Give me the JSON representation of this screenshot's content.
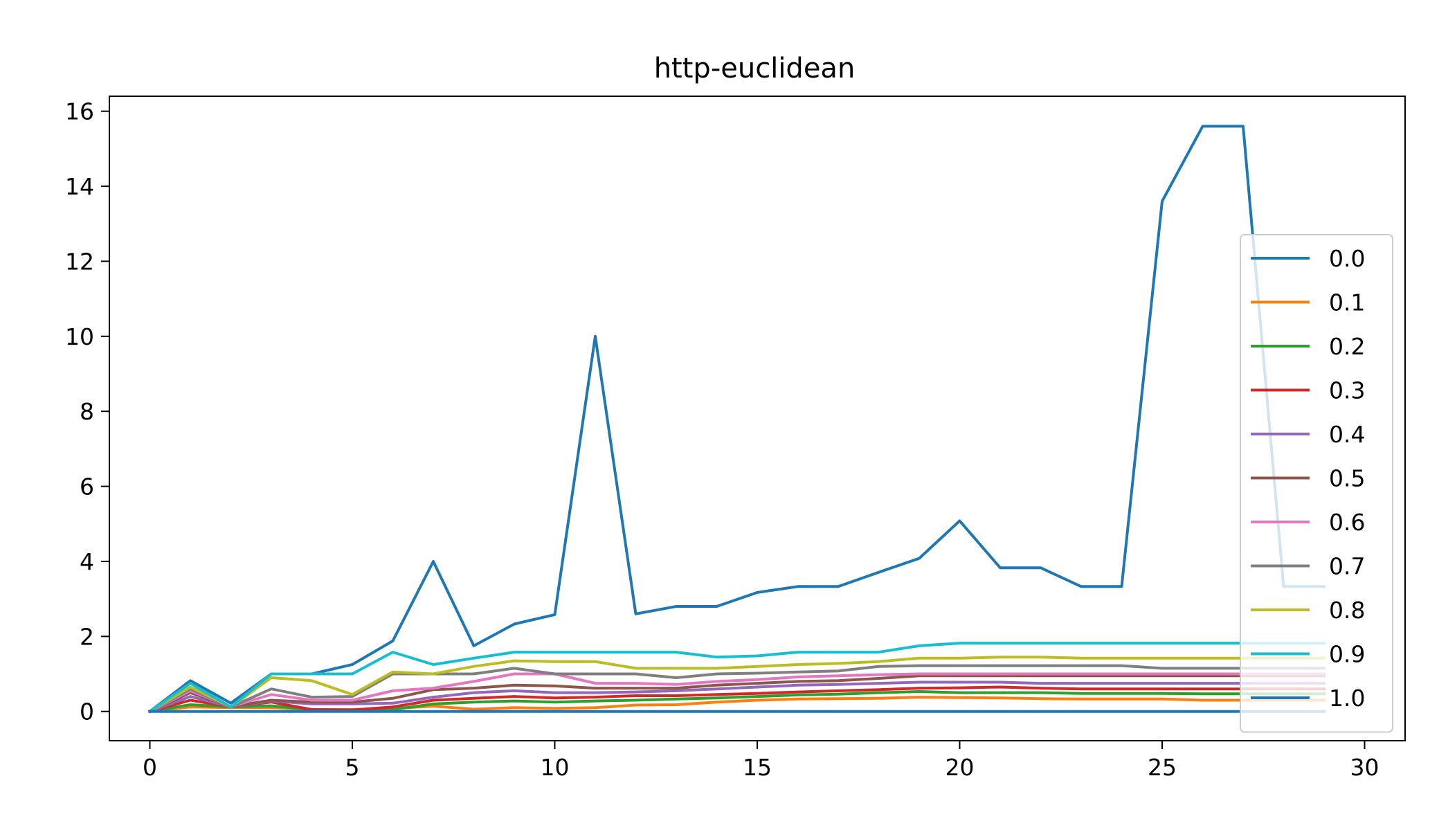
{
  "chart_data": {
    "type": "line",
    "title": "http-euclidean",
    "xlabel": "",
    "ylabel": "",
    "xlim": [
      -1,
      31
    ],
    "ylim": [
      -0.78,
      16.4
    ],
    "xticks": [
      0,
      5,
      10,
      15,
      20,
      25,
      30
    ],
    "yticks": [
      0,
      2,
      4,
      6,
      8,
      10,
      12,
      14,
      16
    ],
    "grid": false,
    "legend_position": "right",
    "x": [
      0,
      1,
      2,
      3,
      4,
      5,
      6,
      7,
      8,
      9,
      10,
      11,
      12,
      13,
      14,
      15,
      16,
      17,
      18,
      19,
      20,
      21,
      22,
      23,
      24,
      25,
      26,
      27,
      28,
      29
    ],
    "series": [
      {
        "name": "0.0",
        "color": "#1f77b4",
        "values": [
          0,
          0.82,
          0.22,
          1.0,
          1.0,
          1.25,
          1.88,
          4.0,
          1.75,
          2.33,
          2.58,
          10.0,
          2.6,
          2.8,
          2.8,
          3.17,
          3.33,
          3.33,
          3.71,
          4.08,
          5.08,
          3.83,
          3.83,
          3.33,
          3.33,
          13.6,
          15.6,
          15.6,
          3.33,
          3.33
        ]
      },
      {
        "name": "0.1",
        "color": "#ff7f0e",
        "values": [
          0,
          0.12,
          0.1,
          0.1,
          0.05,
          0.05,
          0.08,
          0.14,
          0.06,
          0.1,
          0.08,
          0.1,
          0.17,
          0.18,
          0.25,
          0.3,
          0.33,
          0.34,
          0.35,
          0.38,
          0.37,
          0.36,
          0.34,
          0.33,
          0.33,
          0.33,
          0.3,
          0.3,
          0.3,
          0.3
        ]
      },
      {
        "name": "0.2",
        "color": "#2ca02c",
        "values": [
          0,
          0.18,
          0.12,
          0.15,
          0.05,
          0.04,
          0.05,
          0.2,
          0.25,
          0.28,
          0.25,
          0.28,
          0.3,
          0.33,
          0.36,
          0.4,
          0.44,
          0.46,
          0.5,
          0.53,
          0.5,
          0.5,
          0.5,
          0.48,
          0.48,
          0.48,
          0.47,
          0.47,
          0.47,
          0.47
        ]
      },
      {
        "name": "0.3",
        "color": "#d62728",
        "values": [
          0,
          0.3,
          0.12,
          0.25,
          0.05,
          0.04,
          0.12,
          0.3,
          0.35,
          0.4,
          0.36,
          0.38,
          0.42,
          0.42,
          0.45,
          0.48,
          0.52,
          0.55,
          0.58,
          0.62,
          0.63,
          0.65,
          0.62,
          0.6,
          0.6,
          0.6,
          0.6,
          0.6,
          0.6,
          0.6
        ]
      },
      {
        "name": "0.4",
        "color": "#9467bd",
        "values": [
          0,
          0.4,
          0.12,
          0.28,
          0.2,
          0.2,
          0.22,
          0.38,
          0.5,
          0.55,
          0.5,
          0.5,
          0.52,
          0.55,
          0.6,
          0.65,
          0.7,
          0.72,
          0.75,
          0.78,
          0.78,
          0.78,
          0.75,
          0.75,
          0.75,
          0.75,
          0.75,
          0.75,
          0.75,
          0.75
        ]
      },
      {
        "name": "0.5",
        "color": "#8c564b",
        "values": [
          0,
          0.5,
          0.13,
          0.3,
          0.25,
          0.25,
          0.35,
          0.58,
          0.62,
          0.7,
          0.68,
          0.62,
          0.62,
          0.62,
          0.7,
          0.75,
          0.8,
          0.82,
          0.88,
          0.95,
          0.95,
          0.95,
          0.95,
          0.95,
          0.95,
          0.95,
          0.95,
          0.95,
          0.95,
          0.95
        ]
      },
      {
        "name": "0.6",
        "color": "#e377c2",
        "values": [
          0,
          0.55,
          0.13,
          0.45,
          0.3,
          0.3,
          0.55,
          0.62,
          0.8,
          1.0,
          1.0,
          0.75,
          0.75,
          0.72,
          0.8,
          0.85,
          0.92,
          0.95,
          0.98,
          1.0,
          1.0,
          1.0,
          1.0,
          1.0,
          1.0,
          1.0,
          1.0,
          1.0,
          1.0,
          1.0
        ]
      },
      {
        "name": "0.7",
        "color": "#7f7f7f",
        "values": [
          0,
          0.6,
          0.12,
          0.6,
          0.38,
          0.4,
          1.0,
          1.0,
          1.0,
          1.15,
          1.0,
          1.0,
          1.0,
          0.9,
          1.0,
          1.02,
          1.05,
          1.08,
          1.2,
          1.22,
          1.22,
          1.22,
          1.22,
          1.22,
          1.22,
          1.15,
          1.15,
          1.15,
          1.15,
          1.15
        ]
      },
      {
        "name": "0.8",
        "color": "#bcbd22",
        "values": [
          0,
          0.65,
          0.12,
          0.9,
          0.82,
          0.45,
          1.05,
          1.0,
          1.2,
          1.35,
          1.33,
          1.33,
          1.15,
          1.15,
          1.15,
          1.2,
          1.25,
          1.28,
          1.33,
          1.42,
          1.42,
          1.45,
          1.45,
          1.42,
          1.42,
          1.42,
          1.42,
          1.42,
          1.42,
          1.42
        ]
      },
      {
        "name": "0.9",
        "color": "#17becf",
        "values": [
          0,
          0.75,
          0.12,
          1.0,
          1.0,
          1.0,
          1.58,
          1.25,
          1.42,
          1.58,
          1.58,
          1.58,
          1.58,
          1.58,
          1.45,
          1.48,
          1.58,
          1.58,
          1.58,
          1.75,
          1.82,
          1.82,
          1.82,
          1.82,
          1.82,
          1.82,
          1.82,
          1.82,
          1.82,
          1.82
        ]
      },
      {
        "name": "1.0",
        "color": "#1f77b4",
        "values": [
          0,
          0,
          0,
          0,
          0,
          0,
          0,
          0,
          0,
          0,
          0,
          0,
          0,
          0,
          0,
          0,
          0,
          0,
          0,
          0,
          0,
          0,
          0,
          0,
          0,
          0,
          0,
          0,
          0,
          0
        ]
      }
    ]
  }
}
